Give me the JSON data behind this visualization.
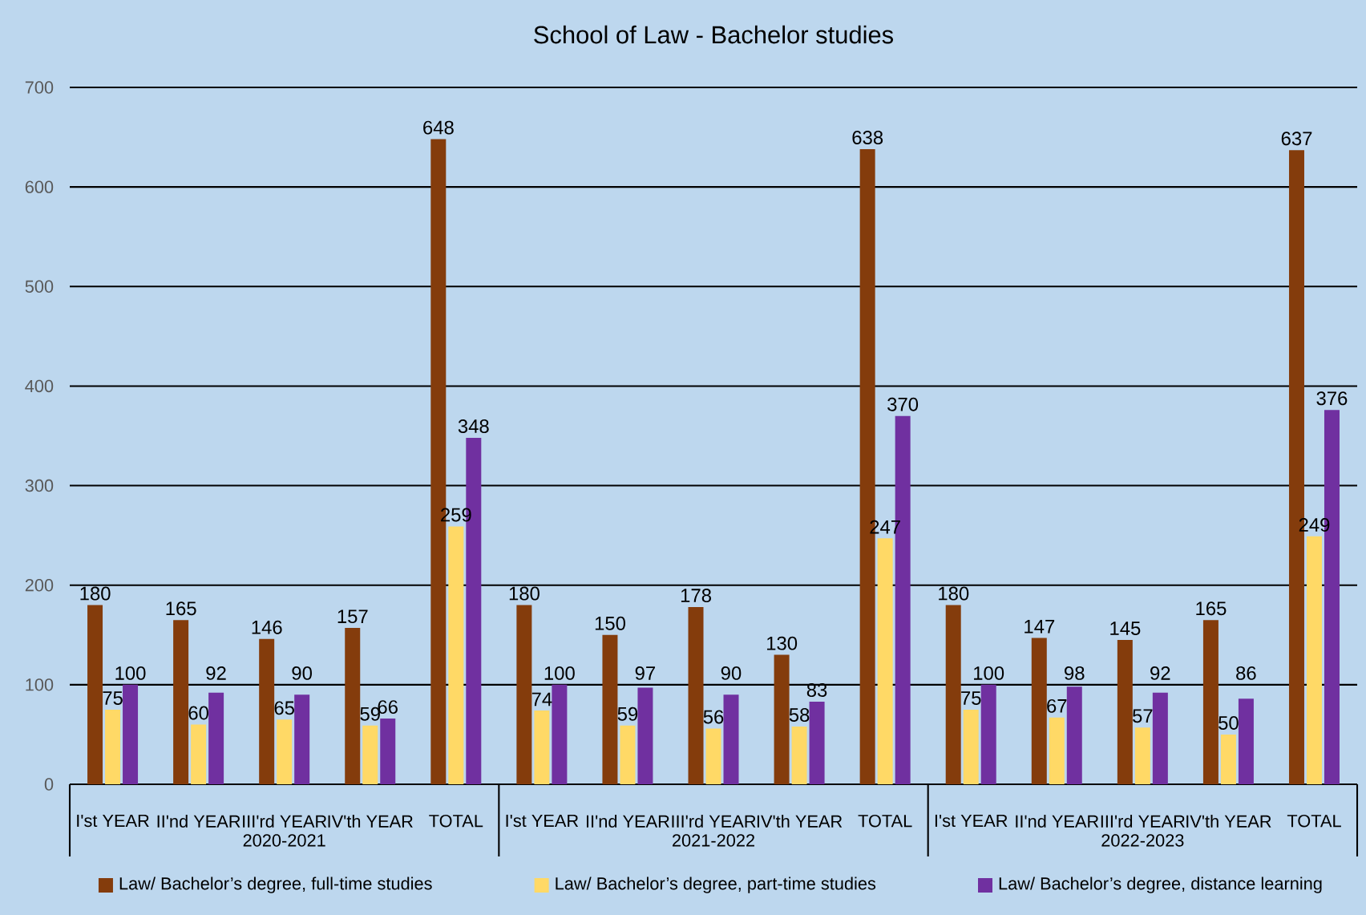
{
  "chart_data": {
    "type": "bar",
    "title": "School of Law - Bachelor studies",
    "categories": [
      "I'st YEAR",
      "II'nd YEAR",
      "III'rd YEAR",
      "IV'th YEAR",
      "TOTAL",
      "I'st YEAR",
      "II'nd YEAR",
      "III'rd YEAR",
      "IV'th YEAR",
      "TOTAL",
      "I'st YEAR",
      "II'nd YEAR",
      "III'rd YEAR",
      "IV'th YEAR",
      "TOTAL"
    ],
    "series": [
      {
        "name": "Law/ Bachelor’s degree, full-time studies",
        "color": "#843c0c",
        "values": [
          180,
          165,
          146,
          157,
          648,
          180,
          150,
          178,
          130,
          638,
          180,
          147,
          145,
          165,
          637
        ]
      },
      {
        "name": "Law/ Bachelor’s degree, part-time studies",
        "color": "#ffd966",
        "values": [
          75,
          60,
          65,
          59,
          259,
          74,
          59,
          56,
          58,
          247,
          75,
          67,
          57,
          50,
          249
        ]
      },
      {
        "name": "Law/ Bachelor’s degree, distance learning",
        "color": "#7030a0",
        "values": [
          100,
          92,
          90,
          66,
          348,
          100,
          97,
          90,
          83,
          370,
          100,
          98,
          92,
          86,
          376
        ]
      }
    ],
    "annotations": [
      "2020-2021",
      "2021-2022",
      "2022-2023"
    ],
    "ylim": [
      0,
      700
    ],
    "yticks": [
      0,
      100,
      200,
      300,
      400,
      500,
      600,
      700
    ],
    "grid": "y",
    "legend": "bottom",
    "data_labels": true
  }
}
